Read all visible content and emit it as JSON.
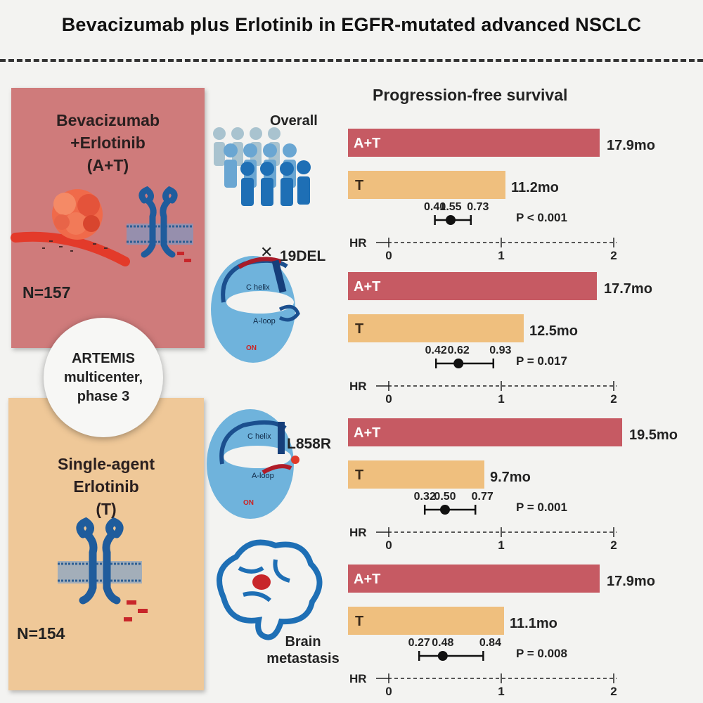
{
  "title": "Bevacizumab plus Erlotinib in EGFR-mutated advanced NSCLC",
  "left": {
    "arm_a": {
      "line1": "Bevacizumab",
      "line2": "+Erlotinib",
      "line3": "(A+T)",
      "n": "N=157"
    },
    "trial": {
      "line1": "ARTEMIS",
      "line2": "multicenter,",
      "line3": "phase 3"
    },
    "arm_t": {
      "line1": "Single-agent",
      "line2": "Erlotinib",
      "line3": "(T)",
      "n": "N=154"
    }
  },
  "middle": {
    "overall": "Overall",
    "del19": "19DEL",
    "l858r": "L858R",
    "brain_line1": "Brain",
    "brain_line2": "metastasis",
    "c_helix": "C helix",
    "a_loop": "A-loop",
    "on": "ON"
  },
  "colors": {
    "at_bar": "#c65a63",
    "t_bar": "#efbf7e",
    "on_text": "#cc2222",
    "icon_blue": "#1e6fb5"
  },
  "chart_data": {
    "type": "bar",
    "title": "Progression-free survival",
    "hr_label": "HR",
    "hr_ticks": [
      0,
      1,
      2
    ],
    "groups": [
      {
        "subgroup": "Overall",
        "at_label": "A+T",
        "at_value": 17.9,
        "at_text": "17.9mo",
        "t_label": "T",
        "t_value": 11.2,
        "t_text": "11.2mo",
        "hr": 0.55,
        "ci_low": 0.41,
        "ci_high": 0.73,
        "ci_text": [
          "0.41",
          "0.55",
          "0.73"
        ],
        "p_text": "P < 0.001"
      },
      {
        "subgroup": "19DEL",
        "at_label": "A+T",
        "at_value": 17.7,
        "at_text": "17.7mo",
        "t_label": "T",
        "t_value": 12.5,
        "t_text": "12.5mo",
        "hr": 0.62,
        "ci_low": 0.42,
        "ci_high": 0.93,
        "ci_text": [
          "0.42",
          "0.62",
          "0.93"
        ],
        "p_text": "P = 0.017"
      },
      {
        "subgroup": "L858R",
        "at_label": "A+T",
        "at_value": 19.5,
        "at_text": "19.5mo",
        "t_label": "T",
        "t_value": 9.7,
        "t_text": "9.7mo",
        "hr": 0.5,
        "ci_low": 0.32,
        "ci_high": 0.77,
        "ci_text": [
          "0.32",
          "0.50",
          "0.77"
        ],
        "p_text": "P = 0.001"
      },
      {
        "subgroup": "Brain metastasis",
        "at_label": "A+T",
        "at_value": 17.9,
        "at_text": "17.9mo",
        "t_label": "T",
        "t_value": 11.1,
        "t_text": "11.1mo",
        "hr": 0.48,
        "ci_low": 0.27,
        "ci_high": 0.84,
        "ci_text": [
          "0.27",
          "0.48",
          "0.84"
        ],
        "p_text": "P = 0.008"
      }
    ]
  }
}
